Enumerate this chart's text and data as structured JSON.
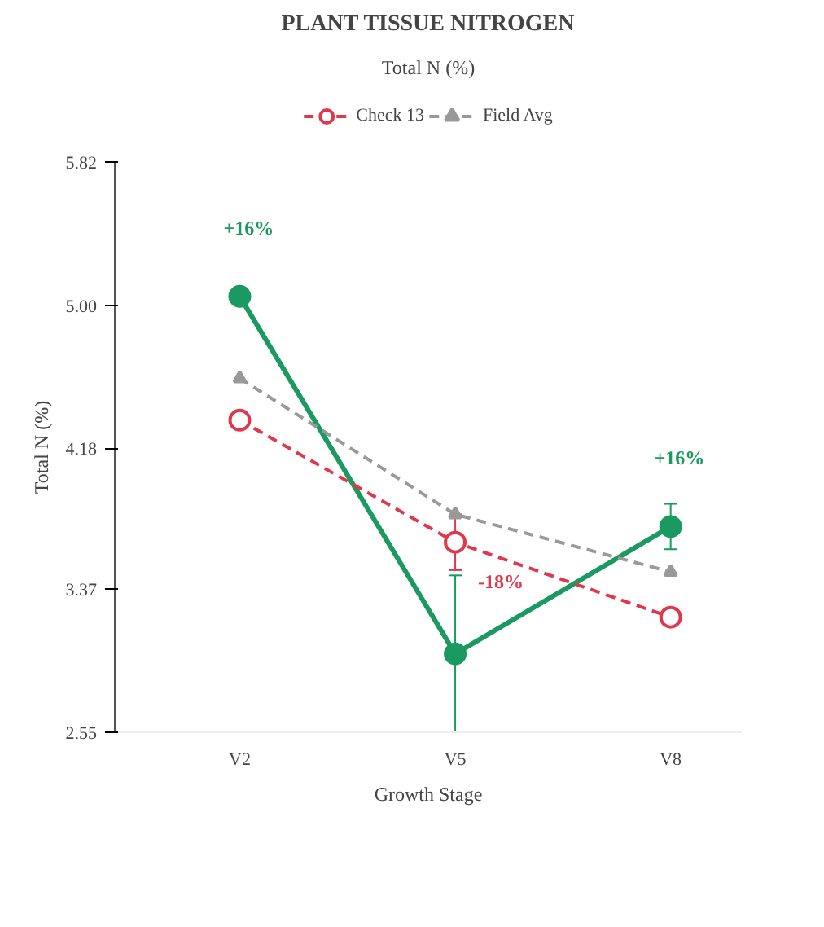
{
  "chart_data": {
    "type": "line",
    "title": "PLANT TISSUE NITROGEN",
    "subtitle": "Total N (%)",
    "xlabel": "Growth Stage",
    "ylabel": "Total N (%)",
    "categories": [
      "V2",
      "V5",
      "V8"
    ],
    "ylim": [
      2.55,
      5.82
    ],
    "yticks": [
      {
        "value": 2.55,
        "label": "2.55"
      },
      {
        "value": 3.37,
        "label": "3.37"
      },
      {
        "value": 4.18,
        "label": "4.18"
      },
      {
        "value": 5.0,
        "label": "5.00"
      },
      {
        "value": 5.82,
        "label": "5.82"
      }
    ],
    "series": [
      {
        "color": "#1a9a60",
        "values": [
          5.05,
          3.0,
          3.73
        ],
        "errors": [
          null,
          0.45,
          0.13
        ],
        "marker": "circle",
        "line_style": "solid"
      },
      {
        "name": "Check 13",
        "color": "#e0384a",
        "values": [
          4.34,
          3.64,
          3.21
        ],
        "errors": [
          null,
          0.16,
          null
        ],
        "marker": "circle",
        "line_style": "dashed"
      },
      {
        "name": "Field Avg",
        "color": "#999999",
        "values": [
          4.58,
          3.8,
          3.47
        ],
        "marker": "triangle",
        "line_style": "dashed"
      }
    ],
    "annotations": [
      {
        "text": "+16%",
        "x": "V2",
        "y": 5.05
      },
      {
        "text": "-18%",
        "x": "V5",
        "y": 3.64
      },
      {
        "text": "+16%",
        "x": "V8",
        "y": 3.73
      }
    ],
    "legend": "top",
    "grid": false
  }
}
